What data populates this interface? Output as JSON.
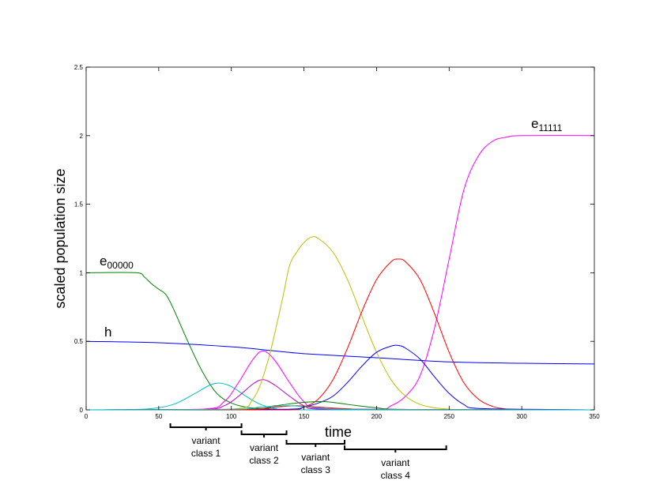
{
  "chart_data": {
    "type": "line",
    "xlabel": "time",
    "ylabel": "scaled population size",
    "xlim": [
      0,
      350
    ],
    "ylim": [
      0,
      2.5
    ],
    "xticks": [
      "0",
      "50",
      "100",
      "150",
      "200",
      "250",
      "300",
      "350"
    ],
    "yticks": [
      "0",
      "0.5",
      "1",
      "1.5",
      "2",
      "2.5"
    ],
    "grid": false,
    "annotations": {
      "e00000": {
        "base": "e",
        "sub": "00000"
      },
      "e11111": {
        "base": "e",
        "sub": "11111"
      },
      "h": {
        "text": "h"
      }
    },
    "variant_classes": [
      {
        "line1": "variant",
        "line2": "class 1",
        "x_range": [
          58,
          107
        ]
      },
      {
        "line1": "variant",
        "line2": "class 2",
        "x_range": [
          107,
          138
        ]
      },
      {
        "line1": "variant",
        "line2": "class 3",
        "x_range": [
          138,
          178
        ]
      },
      {
        "line1": "variant",
        "line2": "class 4",
        "x_range": [
          178,
          248
        ]
      }
    ],
    "series": [
      {
        "color": "#0000ff",
        "x": [
          0,
          50,
          100,
          130,
          150,
          200,
          250,
          300,
          350
        ],
        "y": [
          0.5,
          0.49,
          0.46,
          0.43,
          0.41,
          0.38,
          0.35,
          0.34,
          0.335
        ]
      },
      {
        "color": "#008000",
        "x": [
          0,
          35,
          40,
          45,
          50,
          55,
          60,
          70,
          80,
          90,
          100,
          110,
          120,
          130,
          140,
          350
        ],
        "y": [
          1,
          1,
          0.97,
          0.92,
          0.88,
          0.84,
          0.74,
          0.5,
          0.28,
          0.12,
          0.05,
          0.02,
          0.01,
          0.005,
          0,
          0
        ]
      },
      {
        "color": "#ff00ff",
        "x": [
          0,
          200,
          210,
          220,
          230,
          240,
          250,
          260,
          270,
          280,
          290,
          300,
          350
        ],
        "y": [
          0,
          0,
          0.03,
          0.1,
          0.25,
          0.6,
          1.1,
          1.6,
          1.85,
          1.96,
          1.99,
          2,
          2
        ]
      },
      {
        "color": "#00bfbf",
        "x": [
          0,
          40,
          60,
          75,
          85,
          92,
          100,
          110,
          120,
          130,
          140,
          350
        ],
        "y": [
          0,
          0.005,
          0.04,
          0.12,
          0.18,
          0.195,
          0.17,
          0.1,
          0.04,
          0.01,
          0,
          0
        ]
      },
      {
        "color": "#ff00ff",
        "x": [
          0,
          80,
          95,
          105,
          115,
          122,
          130,
          140,
          150,
          160,
          350
        ],
        "y": [
          0,
          0.005,
          0.06,
          0.2,
          0.37,
          0.43,
          0.36,
          0.2,
          0.06,
          0.01,
          0
        ]
      },
      {
        "color": "#bf00bf",
        "x": [
          0,
          80,
          95,
          105,
          115,
          122,
          130,
          140,
          150,
          160,
          350
        ],
        "y": [
          0,
          0.003,
          0.03,
          0.1,
          0.19,
          0.22,
          0.18,
          0.1,
          0.03,
          0.005,
          0
        ]
      },
      {
        "color": "#bfbf00",
        "x": [
          0,
          100,
          115,
          125,
          135,
          140,
          145,
          150,
          155,
          160,
          170,
          180,
          190,
          200,
          210,
          220,
          230,
          240,
          250,
          260,
          350
        ],
        "y": [
          0,
          0.005,
          0.08,
          0.35,
          0.8,
          1.05,
          1.15,
          1.22,
          1.26,
          1.25,
          1.15,
          0.95,
          0.68,
          0.42,
          0.22,
          0.1,
          0.04,
          0.015,
          0.005,
          0,
          0
        ]
      },
      {
        "color": "#ff0000",
        "x": [
          0,
          140,
          150,
          160,
          170,
          180,
          190,
          200,
          210,
          215,
          220,
          230,
          240,
          250,
          260,
          270,
          280,
          290,
          300,
          350
        ],
        "y": [
          0,
          0,
          0.02,
          0.08,
          0.22,
          0.45,
          0.72,
          0.95,
          1.08,
          1.1,
          1.08,
          0.95,
          0.7,
          0.42,
          0.2,
          0.08,
          0.025,
          0.005,
          0,
          0
        ]
      },
      {
        "color": "#0000ff",
        "x": [
          0,
          140,
          150,
          160,
          170,
          180,
          190,
          200,
          210,
          215,
          220,
          230,
          240,
          250,
          260,
          270,
          350
        ],
        "y": [
          0,
          0.005,
          0.02,
          0.05,
          0.1,
          0.2,
          0.32,
          0.42,
          0.465,
          0.47,
          0.45,
          0.37,
          0.24,
          0.12,
          0.04,
          0.01,
          0
        ]
      },
      {
        "color": "#008000",
        "x": [
          0,
          110,
          130,
          150,
          165,
          180,
          200,
          220,
          350
        ],
        "y": [
          0,
          0.005,
          0.03,
          0.055,
          0.06,
          0.04,
          0.015,
          0.003,
          0
        ]
      },
      {
        "color": "#ff0000",
        "x": [
          0,
          110,
          130,
          145,
          160,
          180,
          200,
          350
        ],
        "y": [
          0,
          0.003,
          0.02,
          0.03,
          0.02,
          0.008,
          0.002,
          0
        ]
      },
      {
        "color": "#00bfbf",
        "x": [
          0,
          100,
          120,
          140,
          160,
          180,
          350
        ],
        "y": [
          0,
          0.004,
          0.02,
          0.03,
          0.015,
          0.004,
          0
        ]
      }
    ]
  }
}
